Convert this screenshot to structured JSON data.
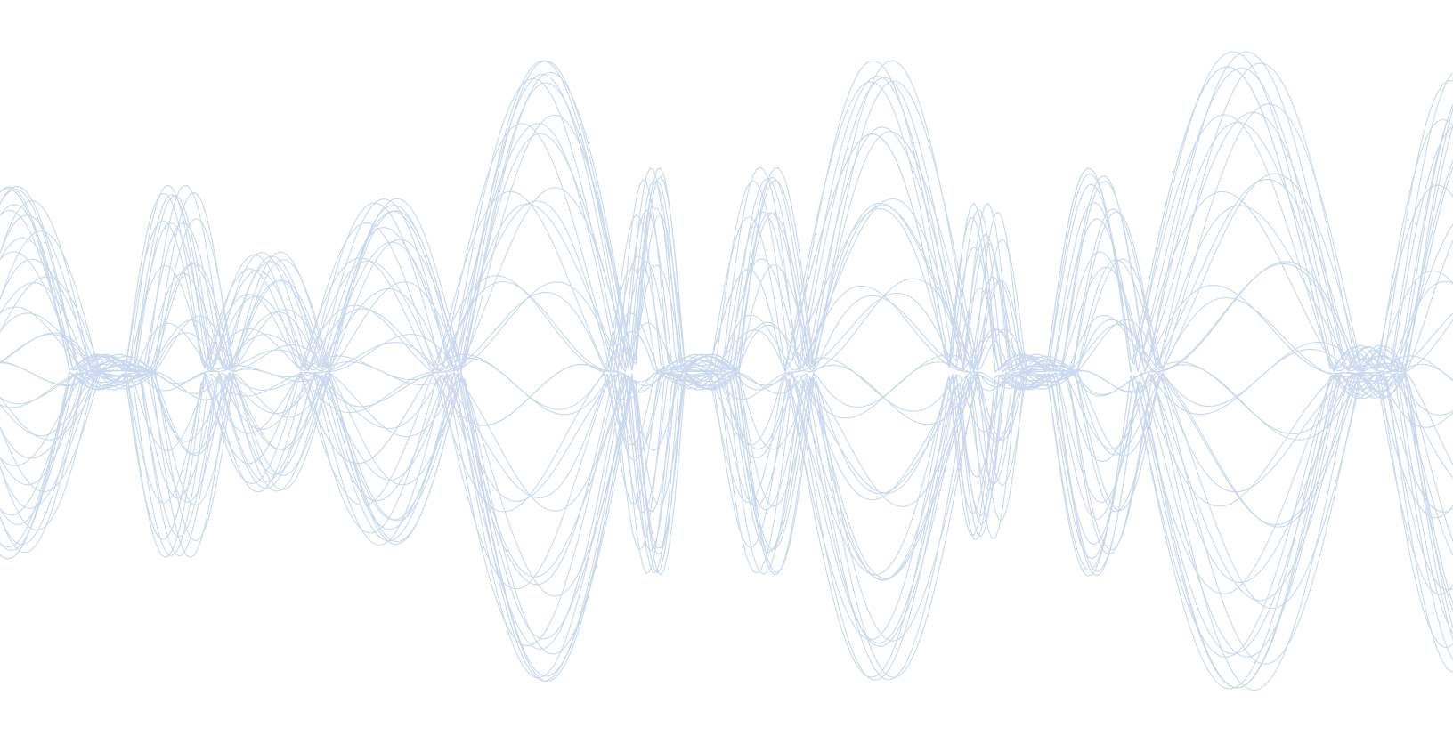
{
  "background": {
    "kind": "decorative-wave-pattern",
    "background_color": "#ffffff",
    "line_color": "#c9d8ee"
  }
}
